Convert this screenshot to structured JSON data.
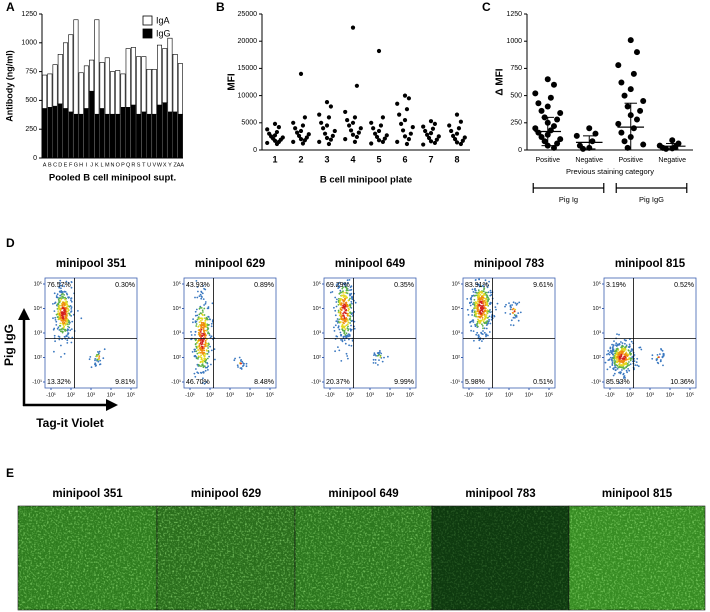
{
  "chart_data": [
    {
      "type": "bar",
      "panel": "A",
      "stacked": true,
      "y_label": "Antibody (ng/ml)",
      "x_label": "Pooled B cell minipool supt.",
      "categories": [
        "A",
        "B",
        "C",
        "D",
        "E",
        "F",
        "G",
        "H",
        "I",
        "J",
        "K",
        "L",
        "M",
        "N",
        "O",
        "P",
        "Q",
        "R",
        "S",
        "T",
        "U",
        "V",
        "W",
        "X",
        "Y",
        "Z",
        "AA"
      ],
      "series": [
        {
          "name": "IgG",
          "color": "#000000",
          "values": [
            430,
            440,
            450,
            470,
            430,
            400,
            380,
            380,
            430,
            580,
            380,
            430,
            380,
            380,
            380,
            440,
            440,
            460,
            380,
            400,
            380,
            380,
            460,
            480,
            400,
            400,
            380
          ]
        },
        {
          "name": "IgA",
          "color": "#ffffff",
          "values": [
            290,
            290,
            360,
            430,
            570,
            670,
            820,
            360,
            370,
            270,
            820,
            400,
            490,
            370,
            380,
            290,
            510,
            500,
            500,
            480,
            390,
            390,
            520,
            470,
            640,
            500,
            440
          ]
        }
      ],
      "ylim": [
        0,
        1250
      ],
      "yticks": [
        0,
        250,
        500,
        750,
        1000,
        1250
      ],
      "legend": "upper right"
    },
    {
      "type": "strip",
      "panel": "B",
      "y_label": "MFI",
      "x_label": "B cell minipool plate",
      "categories": [
        "1",
        "2",
        "3",
        "4",
        "5",
        "6",
        "7",
        "8"
      ],
      "color": "#000000",
      "values": [
        [
          4800,
          4200,
          3800,
          3300,
          3000,
          2700,
          2500,
          2300,
          2100,
          1900,
          1700,
          1500,
          1300,
          1100
        ],
        [
          14000,
          6000,
          5000,
          4500,
          4000,
          3500,
          3200,
          2900,
          2600,
          2300,
          2000,
          1800,
          1500,
          1200
        ],
        [
          8800,
          8000,
          6500,
          6000,
          5000,
          4500,
          4000,
          3500,
          3000,
          2600,
          2200,
          1900,
          1500,
          1100
        ],
        [
          22500,
          11800,
          7000,
          6000,
          5500,
          5000,
          4500,
          4000,
          3600,
          3200,
          2800,
          2400,
          2000,
          1500
        ],
        [
          18200,
          6000,
          5000,
          4500,
          4000,
          3500,
          3000,
          2700,
          2400,
          2100,
          1800,
          1500,
          1200
        ],
        [
          10000,
          9500,
          8500,
          7500,
          6500,
          5500,
          4800,
          4200,
          3600,
          3000,
          2500,
          2000,
          1500,
          1100
        ],
        [
          5300,
          4800,
          4300,
          3900,
          3500,
          3100,
          2800,
          2500,
          2200,
          1900,
          1600,
          1300,
          1000
        ],
        [
          6500,
          5200,
          4500,
          4000,
          3500,
          3000,
          2600,
          2300,
          2000,
          1700,
          1400,
          1100
        ]
      ],
      "ylim": [
        0,
        25000
      ],
      "yticks": [
        0,
        5000,
        10000,
        15000,
        20000,
        25000
      ]
    },
    {
      "type": "strip",
      "panel": "C",
      "y_label": "Δ MFI",
      "x_label": "Previous staining category",
      "categories": [
        "Positive",
        "Negative",
        "Positive",
        "Negative"
      ],
      "color": "#000000",
      "values": [
        [
          650,
          600,
          520,
          480,
          430,
          400,
          360,
          340,
          300,
          280,
          250,
          220,
          200,
          180,
          160,
          140,
          120,
          100,
          80,
          60,
          40,
          20
        ],
        [
          200,
          150,
          130,
          80,
          40,
          20,
          10
        ],
        [
          1010,
          900,
          780,
          700,
          620,
          560,
          500,
          450,
          400,
          360,
          320,
          280,
          240,
          200,
          160,
          120,
          80,
          50,
          20
        ],
        [
          90,
          60,
          40,
          30,
          20,
          15,
          10
        ]
      ],
      "means": [
        170,
        70,
        210,
        35
      ],
      "errors": [
        130,
        60,
        220,
        25
      ],
      "groups": [
        {
          "label": "Pig Ig",
          "categories": [
            0,
            1
          ]
        },
        {
          "label": "Pig IgG",
          "categories": [
            2,
            3
          ]
        }
      ],
      "ylim": [
        0,
        1250
      ],
      "yticks": [
        0,
        250,
        500,
        750,
        1000,
        1250
      ]
    }
  ],
  "flow": {
    "panel": "D",
    "y_label": "Pig IgG",
    "x_label": "Tag-it Violet",
    "yticks": [
      "10⁵",
      "10⁴",
      "10³",
      "10²",
      "-10¹"
    ],
    "xticks": [
      "-10¹",
      "10²",
      "10³",
      "10⁴",
      "10⁵"
    ],
    "plots": [
      {
        "title": "minipool 351",
        "ul": "76.57%",
        "ur": "0.30%",
        "ll": "13.32%",
        "lr": "9.81%"
      },
      {
        "title": "minipool 629",
        "ul": "43.93%",
        "ur": "0.89%",
        "ll": "46.70%",
        "lr": "8.48%"
      },
      {
        "title": "minipool 649",
        "ul": "69.29%",
        "ur": "0.35%",
        "ll": "20.37%",
        "lr": "9.99%"
      },
      {
        "title": "minipool 783",
        "ul": "83.91%",
        "ur": "9.61%",
        "ll": "5.98%",
        "lr": "0.51%"
      },
      {
        "title": "minipool 815",
        "ul": "3.19%",
        "ur": "0.52%",
        "ll": "85.93%",
        "lr": "10.36%"
      }
    ]
  },
  "micrographs": {
    "panel": "E",
    "titles": [
      "minipool 351",
      "minipool 629",
      "minipool 649",
      "minipool 783",
      "minipool 815"
    ]
  }
}
